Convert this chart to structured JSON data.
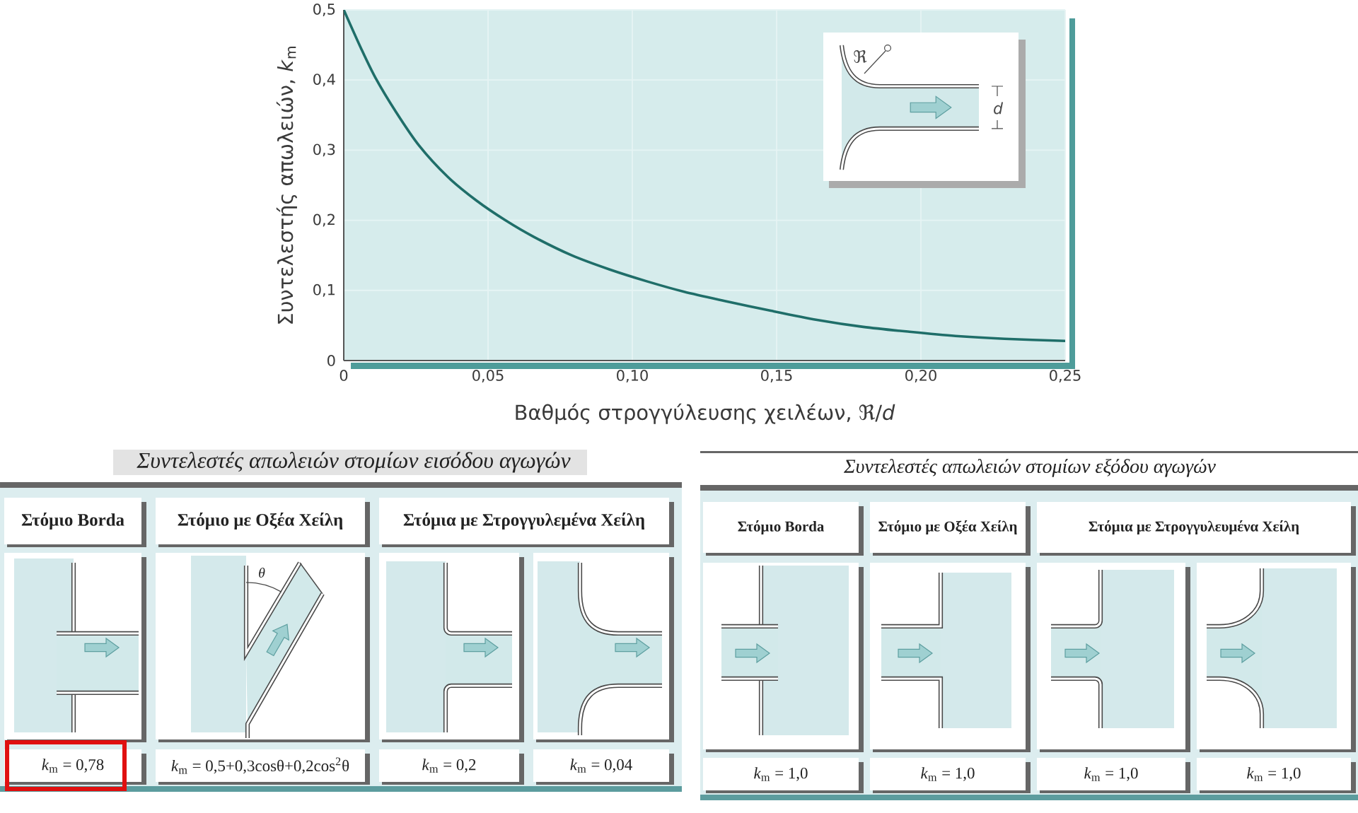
{
  "chart_data": [
    {
      "type": "line",
      "xlabel": "Βαθμός στρογγύλευσης χειλέων, ℜ/*d*",
      "ylabel": "Συντελεστής απωλειών, *k*$_{m}$",
      "x": [
        0,
        0.006,
        0.011,
        0.018,
        0.026,
        0.036,
        0.046,
        0.056,
        0.066,
        0.079,
        0.092,
        0.105,
        0.118,
        0.132,
        0.148,
        0.164,
        0.18,
        0.196,
        0.212,
        0.229,
        0.25
      ],
      "values": [
        0.5,
        0.445,
        0.403,
        0.355,
        0.307,
        0.262,
        0.228,
        0.2,
        0.176,
        0.15,
        0.13,
        0.113,
        0.098,
        0.085,
        0.071,
        0.058,
        0.048,
        0.041,
        0.035,
        0.031,
        0.028
      ],
      "color": "#1f6e69",
      "xlim": [
        0,
        0.25
      ],
      "ylim": [
        0,
        0.5
      ],
      "xticks": [
        0,
        {
          "value": 0.05,
          "label": "0,05"
        },
        {
          "value": 0.1,
          "label": "0,10"
        },
        {
          "value": 0.15,
          "label": "0,15"
        },
        {
          "value": 0.2,
          "label": "0,20"
        },
        {
          "value": 0.25,
          "label": "0,25"
        }
      ],
      "yticks": [
        0,
        {
          "value": 0.1,
          "label": "0,1"
        },
        {
          "value": 0.2,
          "label": "0,2"
        },
        {
          "value": 0.3,
          "label": "0,3"
        },
        {
          "value": 0.4,
          "label": "0,4"
        },
        {
          "value": 0.5,
          "label": "0,5"
        }
      ],
      "grid": true,
      "annotations": [
        "ℜ",
        "d"
      ]
    },
    {
      "type": "other",
      "title": "Συντελεστές απωλειών στομίων εισόδου αγωγών",
      "annotations": [
        "Στόμιο Borda",
        "Στόμιο με Οξέα Χείλη",
        "Στόμια με Στρογγυλεμένα Χείλη",
        "*k*$_{m}$ = 0,78",
        "*k*$_{m}$ = 0,5+0,3cosθ+0,2cos$^{2}$θ",
        "*k*$_{m}$ = 0,2",
        "*k*$_{m}$ = 0,04",
        "θ"
      ]
    },
    {
      "type": "other",
      "title": "Συντελεστές απωλειών στομίων εξόδου αγωγών",
      "annotations": [
        "Στόμιο Borda",
        "Στόμιο με Οξέα Χείλη",
        "Στόμια με Στρογγυλευμένα Χείλη",
        "*k*$_{m}$ = 1,0",
        "*k*$_{m}$ = 1,0",
        "*k*$_{m}$ = 1,0",
        "*k*$_{m}$ = 1,0"
      ]
    }
  ]
}
